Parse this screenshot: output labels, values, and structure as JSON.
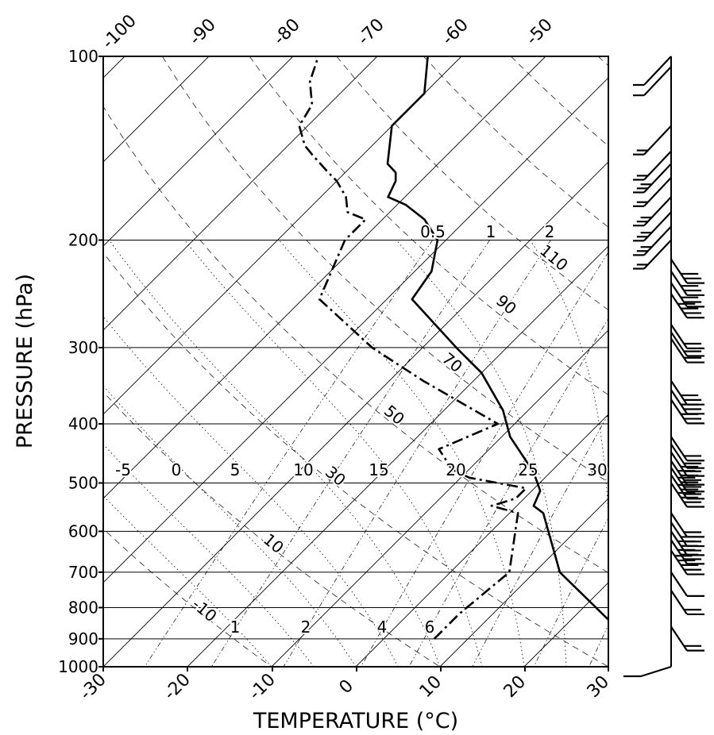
{
  "chart_data": {
    "type": "skew-t log-p sounding",
    "xlabel": "TEMPERATURE (°C)",
    "ylabel": "PRESSURE (hPa)",
    "ylim": [
      1000,
      100
    ],
    "y_scale": "log",
    "pressure_ticks": [
      "100",
      "200",
      "300",
      "400",
      "500",
      "600",
      "700",
      "800",
      "900",
      "1000"
    ],
    "temperature_ticks_bottom": [
      "-30",
      "-20",
      "-10",
      "0",
      "10",
      "20",
      "30"
    ],
    "temperature_ticks_top": [
      "-100",
      "-90",
      "-80",
      "-70",
      "-60",
      "-50"
    ],
    "temperature_labels_500hPa": [
      "-5",
      "0",
      "5",
      "10",
      "15",
      "20",
      "25",
      "30"
    ],
    "dry_adiabat_labels": [
      "-10",
      "10",
      "30",
      "50",
      "70",
      "90",
      "110"
    ],
    "mixing_ratio_labels_900hPa": [
      "1",
      "2",
      "4",
      "6"
    ],
    "mixing_ratio_labels_200hPa": [
      "0.5",
      "1",
      "2"
    ],
    "series": [
      {
        "style": "solid",
        "points": [
          {
            "p": 900,
            "t": 29
          },
          {
            "p": 700,
            "t": 13
          },
          {
            "p": 560,
            "t": 4
          },
          {
            "p": 545,
            "t": 2
          },
          {
            "p": 515,
            "t": 1
          },
          {
            "p": 480,
            "t": -2
          },
          {
            "p": 420,
            "t": -9
          },
          {
            "p": 380,
            "t": -13
          },
          {
            "p": 330,
            "t": -20
          },
          {
            "p": 300,
            "t": -26
          },
          {
            "p": 250,
            "t": -37
          },
          {
            "p": 225,
            "t": -38
          },
          {
            "p": 200,
            "t": -41
          },
          {
            "p": 185,
            "t": -45
          },
          {
            "p": 175,
            "t": -49
          },
          {
            "p": 170,
            "t": -52
          },
          {
            "p": 160,
            "t": -53
          },
          {
            "p": 155,
            "t": -54
          },
          {
            "p": 150,
            "t": -56
          },
          {
            "p": 130,
            "t": -60
          },
          {
            "p": 115,
            "t": -60
          },
          {
            "p": 100,
            "t": -64
          }
        ]
      },
      {
        "style": "dash-dot",
        "points": [
          {
            "p": 900,
            "t": 6
          },
          {
            "p": 820,
            "t": 6
          },
          {
            "p": 700,
            "t": 7
          },
          {
            "p": 560,
            "t": 1
          },
          {
            "p": 545,
            "t": -3
          },
          {
            "p": 530,
            "t": -1
          },
          {
            "p": 510,
            "t": -1
          },
          {
            "p": 490,
            "t": -9
          },
          {
            "p": 475,
            "t": -12
          },
          {
            "p": 440,
            "t": -16
          },
          {
            "p": 400,
            "t": -12
          },
          {
            "p": 340,
            "t": -26
          },
          {
            "p": 300,
            "t": -36
          },
          {
            "p": 250,
            "t": -48
          },
          {
            "p": 200,
            "t": -52
          },
          {
            "p": 185,
            "t": -52
          },
          {
            "p": 180,
            "t": -55
          },
          {
            "p": 170,
            "t": -57
          },
          {
            "p": 160,
            "t": -60
          },
          {
            "p": 155,
            "t": -62
          },
          {
            "p": 145,
            "t": -66
          },
          {
            "p": 140,
            "t": -68
          },
          {
            "p": 130,
            "t": -71
          },
          {
            "p": 120,
            "t": -72
          },
          {
            "p": 110,
            "t": -75
          },
          {
            "p": 100,
            "t": -77
          }
        ]
      }
    ],
    "wind_barbs": [
      {
        "p": 100,
        "barbs": 1
      },
      {
        "p": 104,
        "barbs": 1
      },
      {
        "p": 130,
        "barbs": 2
      },
      {
        "p": 143,
        "barbs": 2
      },
      {
        "p": 150,
        "barbs": 3
      },
      {
        "p": 158,
        "barbs": 2
      },
      {
        "p": 170,
        "barbs": 3
      },
      {
        "p": 180,
        "barbs": 3
      },
      {
        "p": 190,
        "barbs": 3
      },
      {
        "p": 200,
        "barbs": 2
      },
      {
        "p": 215,
        "barbs": 3
      },
      {
        "p": 225,
        "barbs": 3
      },
      {
        "p": 235,
        "barbs": 3
      },
      {
        "p": 245,
        "barbs": 4
      },
      {
        "p": 275,
        "barbs": 2
      },
      {
        "p": 283,
        "barbs": 2
      },
      {
        "p": 290,
        "barbs": 2
      },
      {
        "p": 340,
        "barbs": 3
      },
      {
        "p": 352,
        "barbs": 3
      },
      {
        "p": 365,
        "barbs": 3
      },
      {
        "p": 420,
        "barbs": 2
      },
      {
        "p": 432,
        "barbs": 2
      },
      {
        "p": 445,
        "barbs": 3
      },
      {
        "p": 460,
        "barbs": 4
      },
      {
        "p": 472,
        "barbs": 4
      },
      {
        "p": 485,
        "barbs": 4
      },
      {
        "p": 500,
        "barbs": 4
      },
      {
        "p": 560,
        "barbs": 2
      },
      {
        "p": 580,
        "barbs": 3
      },
      {
        "p": 600,
        "barbs": 4
      },
      {
        "p": 620,
        "barbs": 4
      },
      {
        "p": 645,
        "barbs": 5
      },
      {
        "p": 700,
        "barbs": 1
      },
      {
        "p": 750,
        "barbs": 2
      },
      {
        "p": 860,
        "barbs": 2
      },
      {
        "p": 1000,
        "barbs": 1
      }
    ]
  }
}
